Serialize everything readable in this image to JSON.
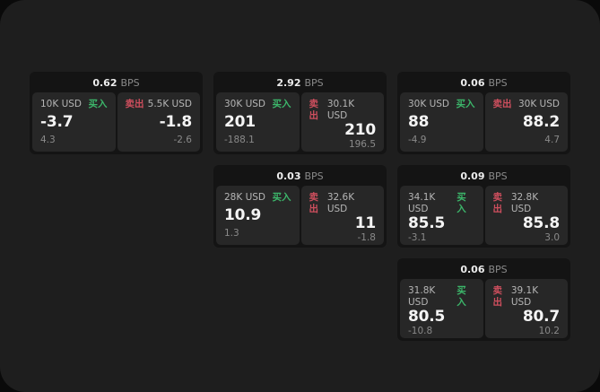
{
  "theme": {
    "panel_bg": "#1e1e1e",
    "card_bg": "#141414",
    "tile_bg": "#272727",
    "green": "#3cb66a",
    "red": "#cf4f5e"
  },
  "labels": {
    "bps": "BPS",
    "buy": "买入",
    "sell": "卖出"
  },
  "cards": [
    {
      "bps": "0.62",
      "col": 1,
      "row": 1,
      "buy": {
        "size": "10K USD",
        "price": "-3.7",
        "delta": "4.3"
      },
      "sell": {
        "size": "5.5K USD",
        "price": "-1.8",
        "delta": "-2.6"
      }
    },
    {
      "bps": "2.92",
      "col": 2,
      "row": 1,
      "buy": {
        "size": "30K USD",
        "price": "201",
        "delta": "-188.1"
      },
      "sell": {
        "size": "30.1K USD",
        "price": "210",
        "delta": "196.5"
      }
    },
    {
      "bps": "0.06",
      "col": 3,
      "row": 1,
      "buy": {
        "size": "30K USD",
        "price": "88",
        "delta": "-4.9"
      },
      "sell": {
        "size": "30K USD",
        "price": "88.2",
        "delta": "4.7"
      }
    },
    {
      "bps": "0.03",
      "col": 2,
      "row": 2,
      "buy": {
        "size": "28K USD",
        "price": "10.9",
        "delta": "1.3"
      },
      "sell": {
        "size": "32.6K USD",
        "price": "11",
        "delta": "-1.8"
      }
    },
    {
      "bps": "0.09",
      "col": 3,
      "row": 2,
      "buy": {
        "size": "34.1K USD",
        "price": "85.5",
        "delta": "-3.1"
      },
      "sell": {
        "size": "32.8K USD",
        "price": "85.8",
        "delta": "3.0"
      }
    },
    {
      "bps": "0.06",
      "col": 3,
      "row": 3,
      "buy": {
        "size": "31.8K USD",
        "price": "80.5",
        "delta": "-10.8"
      },
      "sell": {
        "size": "39.1K USD",
        "price": "80.7",
        "delta": "10.2"
      }
    }
  ]
}
